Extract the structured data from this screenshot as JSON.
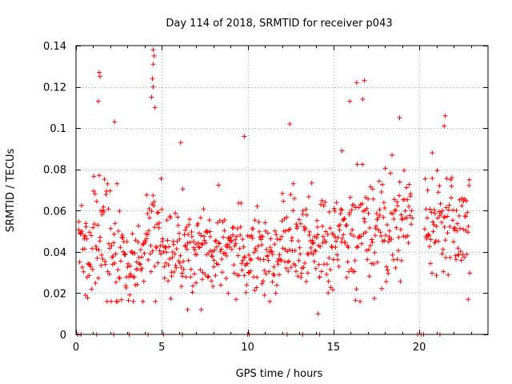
{
  "colors": {
    "points": "#ff0000",
    "grid": "#a0a0a0",
    "frame": "#000000",
    "background": "#ffffff"
  },
  "chart_data": {
    "type": "scatter",
    "marker": "plus",
    "title": "Day 114 of 2018, SRMTID for receiver p043",
    "xlabel": "GPS time / hours",
    "ylabel": "SRMTID / TECUs",
    "xlim": [
      0,
      24
    ],
    "ylim": [
      0,
      0.14
    ],
    "xticks": [
      0,
      5,
      10,
      15,
      20
    ],
    "xtick_labels": [
      "0",
      "5",
      "10",
      "15",
      "20"
    ],
    "yticks": [
      0,
      0.02,
      0.04,
      0.06,
      0.08,
      0.1,
      0.12,
      0.14
    ],
    "ytick_labels": [
      "0",
      "0.02",
      "0.04",
      "0.06",
      "0.08",
      "0.1",
      "0.12",
      "0.14"
    ],
    "grid": true,
    "series": [
      {
        "name": "SRMTID",
        "color": "#ff0000"
      }
    ],
    "outliers": [
      {
        "x": 1.35,
        "y": 0.127
      },
      {
        "x": 1.4,
        "y": 0.125
      },
      {
        "x": 1.3,
        "y": 0.113
      },
      {
        "x": 4.5,
        "y": 0.138
      },
      {
        "x": 4.55,
        "y": 0.135
      },
      {
        "x": 4.5,
        "y": 0.131
      },
      {
        "x": 4.45,
        "y": 0.124
      },
      {
        "x": 4.5,
        "y": 0.12
      },
      {
        "x": 4.4,
        "y": 0.115
      },
      {
        "x": 4.6,
        "y": 0.11
      },
      {
        "x": 2.25,
        "y": 0.103
      },
      {
        "x": 6.1,
        "y": 0.093
      },
      {
        "x": 9.8,
        "y": 0.096
      },
      {
        "x": 12.45,
        "y": 0.102
      },
      {
        "x": 16.35,
        "y": 0.122
      },
      {
        "x": 16.8,
        "y": 0.123
      },
      {
        "x": 15.95,
        "y": 0.113
      },
      {
        "x": 16.7,
        "y": 0.114
      },
      {
        "x": 18.85,
        "y": 0.105
      },
      {
        "x": 21.5,
        "y": 0.106
      },
      {
        "x": 21.45,
        "y": 0.101
      },
      {
        "x": 15.5,
        "y": 0.089
      },
      {
        "x": 20.75,
        "y": 0.088
      },
      {
        "x": 22.85,
        "y": 0.017
      },
      {
        "x": 14.1,
        "y": 0.01
      },
      {
        "x": 6.5,
        "y": 0.012
      },
      {
        "x": 7.3,
        "y": 0.012
      },
      {
        "x": 0.55,
        "y": 0.019
      }
    ],
    "hourly_envelope": [
      {
        "hour": 0,
        "center": 0.04,
        "spread": 0.012
      },
      {
        "hour": 1,
        "center": 0.047,
        "spread": 0.016
      },
      {
        "hour": 2,
        "center": 0.04,
        "spread": 0.016
      },
      {
        "hour": 3,
        "center": 0.035,
        "spread": 0.013
      },
      {
        "hour": 4,
        "center": 0.05,
        "spread": 0.016
      },
      {
        "hour": 5,
        "center": 0.042,
        "spread": 0.012
      },
      {
        "hour": 6,
        "center": 0.041,
        "spread": 0.013
      },
      {
        "hour": 7,
        "center": 0.041,
        "spread": 0.013
      },
      {
        "hour": 8,
        "center": 0.043,
        "spread": 0.013
      },
      {
        "hour": 9,
        "center": 0.042,
        "spread": 0.013
      },
      {
        "hour": 10,
        "center": 0.042,
        "spread": 0.012
      },
      {
        "hour": 11,
        "center": 0.038,
        "spread": 0.012
      },
      {
        "hour": 12,
        "center": 0.046,
        "spread": 0.015
      },
      {
        "hour": 13,
        "center": 0.046,
        "spread": 0.015
      },
      {
        "hour": 14,
        "center": 0.041,
        "spread": 0.014
      },
      {
        "hour": 15,
        "center": 0.047,
        "spread": 0.014
      },
      {
        "hour": 16,
        "center": 0.055,
        "spread": 0.019
      },
      {
        "hour": 17,
        "center": 0.055,
        "spread": 0.017
      },
      {
        "hour": 18,
        "center": 0.05,
        "spread": 0.016
      },
      {
        "hour": 19,
        "center": 0.06,
        "spread": 0.013
      },
      {
        "hour": 20,
        "center": 0.057,
        "spread": 0.013
      },
      {
        "hour": 21,
        "center": 0.058,
        "spread": 0.013
      },
      {
        "hour": 22,
        "center": 0.055,
        "spread": 0.014
      },
      {
        "hour": 23,
        "center": 0.055,
        "spread": 0.014
      }
    ],
    "data_gaps_hours": [
      [
        19.6,
        20.3
      ],
      [
        22.95,
        24
      ]
    ],
    "zero_values_x": [
      0.1,
      0.3,
      1.2,
      2.2,
      3.1,
      4.2,
      5.1,
      6.2,
      10.0,
      10.1,
      12.3,
      13.2,
      14.2,
      19.9,
      20.1,
      20.25,
      21.2
    ]
  }
}
